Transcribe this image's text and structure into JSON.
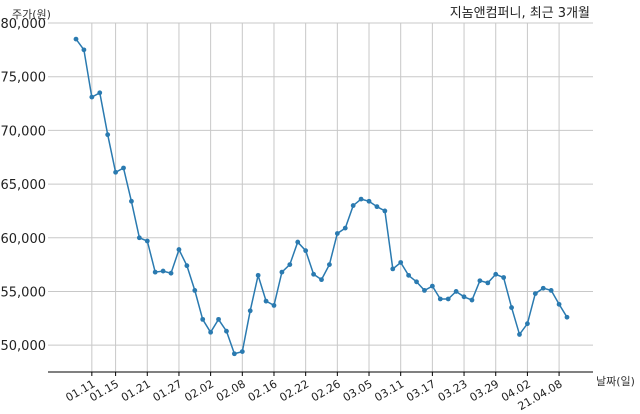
{
  "chart_data": {
    "type": "line",
    "title": "지놈앤컴퍼니, 최근 3개월",
    "xlabel": "날짜(일)",
    "ylabel": "주가(원)",
    "ylim": [
      47500,
      80000
    ],
    "yticks": [
      50000,
      55000,
      60000,
      65000,
      70000,
      75000,
      80000
    ],
    "ytick_labels": [
      "50,000",
      "55,000",
      "60,000",
      "65,000",
      "70,000",
      "75,000",
      "80,000"
    ],
    "xtick_labels": [
      "01.11",
      "01.15",
      "01.21",
      "01.27",
      "02.02",
      "02.08",
      "02.16",
      "02.22",
      "02.26",
      "03.05",
      "03.11",
      "03.17",
      "03.23",
      "03.29",
      "04.02",
      "21.04.08"
    ],
    "xtick_index": [
      2,
      5,
      9,
      13,
      17,
      21,
      25,
      29,
      33,
      37,
      41,
      45,
      49,
      53,
      57,
      61
    ],
    "grid": true,
    "line_color": "#2a7ab0",
    "series": [
      {
        "values": [
          78500,
          77500,
          73100,
          73500,
          69600,
          66100,
          66500,
          63400,
          60000,
          59700,
          56800,
          56900,
          56700,
          58900,
          57400,
          55100,
          52400,
          51200,
          52400,
          51300,
          49200,
          49400,
          53200,
          56500,
          54100,
          53700,
          56800,
          57500,
          59600,
          58800,
          56600,
          56100,
          57500,
          60400,
          60900,
          63000,
          63600,
          63400,
          62900,
          62500,
          57100,
          57700,
          56500,
          55900,
          55100,
          55500,
          54300,
          54300,
          55000,
          54500,
          54200,
          56000,
          55800,
          56600,
          56300,
          53500,
          51000,
          52000,
          54800,
          55300,
          55100,
          53800,
          52600
        ]
      }
    ]
  }
}
